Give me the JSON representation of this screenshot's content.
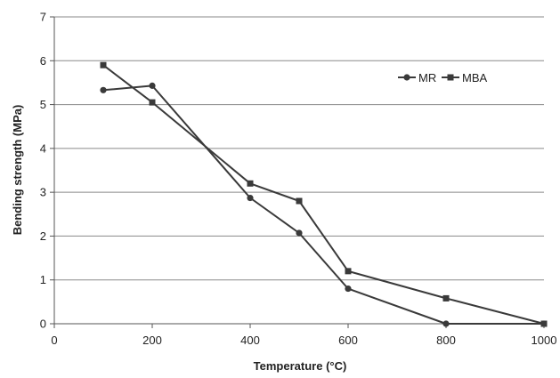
{
  "chart_data": {
    "type": "line",
    "xlabel": "Temperature (°C)",
    "ylabel": "Bending strength (MPa)",
    "xlim": [
      0,
      1000
    ],
    "ylim": [
      0,
      7
    ],
    "xticks": [
      0,
      200,
      400,
      600,
      800,
      1000
    ],
    "yticks": [
      0,
      1,
      2,
      3,
      4,
      5,
      6,
      7
    ],
    "grid": "horizontal",
    "legend_position": "top-right",
    "series": [
      {
        "name": "MR",
        "marker": "circle",
        "color": "#3a3a3a",
        "x": [
          100,
          200,
          400,
          500,
          600,
          800,
          1000
        ],
        "y": [
          5.33,
          5.43,
          2.87,
          2.07,
          0.8,
          0,
          0
        ]
      },
      {
        "name": "MBA",
        "marker": "square",
        "color": "#3a3a3a",
        "x": [
          100,
          200,
          400,
          500,
          600,
          800,
          1000
        ],
        "y": [
          5.9,
          5.05,
          3.2,
          2.8,
          1.2,
          0.58,
          0
        ]
      }
    ]
  }
}
